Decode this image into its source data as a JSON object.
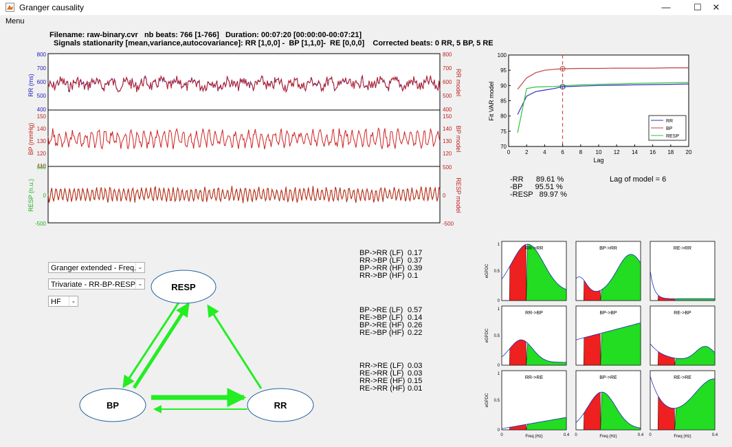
{
  "window": {
    "title": "Granger causality",
    "minimize": "—",
    "maximize": "☐",
    "close": "✕"
  },
  "menu": {
    "label": "Menu"
  },
  "header": {
    "line1": "Filename: raw-binary.cvr   nb beats: 766 [1-766]   Duration: 00:07:20 [00:00:00-00:07:21]",
    "line2": "Signals stationarity [mean,variance,autocovariance]: RR [1,0,0] -  BP [1,1,0]-  RE [0,0,0]    Corrected beats: 0 RR, 5 BP, 5 RE"
  },
  "signals": {
    "rr": {
      "ylabel": "RR (ms)",
      "ylabel_right": "RR model",
      "ticks": [
        "800",
        "700",
        "600",
        "500",
        "400"
      ],
      "color": "#2020c0"
    },
    "bp": {
      "ylabel": "BP (mmHg)",
      "ylabel_right": "BP model",
      "ticks": [
        "150",
        "140",
        "130",
        "120",
        "110"
      ],
      "color": "#d02020"
    },
    "resp": {
      "ylabel": "RESP (n.u.)",
      "ylabel_right": "RESP model",
      "ticks": [
        "500",
        "0",
        "-500"
      ],
      "color": "#20b020"
    }
  },
  "fit_chart": {
    "xlabel": "Lag",
    "ylabel": "Fit VAR model",
    "xticks": [
      "0",
      "2",
      "4",
      "6",
      "8",
      "10",
      "12",
      "14",
      "16",
      "18",
      "20"
    ],
    "yticks": [
      "100",
      "95",
      "90",
      "85",
      "80",
      "75",
      "70"
    ],
    "legend": [
      {
        "name": "RR",
        "color": "#3030c0"
      },
      {
        "name": "BP",
        "color": "#c04040"
      },
      {
        "name": "RESP",
        "color": "#30c040"
      }
    ]
  },
  "fit_stats": {
    "rr": "-RR      89.61 %",
    "bp": "-BP      95.51 %",
    "resp": "-RESP   89.97 %",
    "lag": "Lag of model = 6"
  },
  "controls": {
    "method": "Granger extended - Freq.",
    "model": "Trivariate - RR-BP-RESP",
    "band": "HF"
  },
  "graph": {
    "nodes": {
      "resp": "RESP",
      "bp": "BP",
      "rr": "RR"
    },
    "arrow_color": "#22ee22"
  },
  "values": {
    "group1": [
      {
        "label": "BP->RR (LF)",
        "value": "0.17"
      },
      {
        "label": "RR->BP (LF)",
        "value": "0.37"
      },
      {
        "label": "BP->RR (HF)",
        "value": "0.39"
      },
      {
        "label": "RR->BP (HF)",
        "value": "0.1"
      }
    ],
    "group2": [
      {
        "label": "BP->RE (LF)",
        "value": "0.57"
      },
      {
        "label": "RE->BP (LF)",
        "value": "0.14"
      },
      {
        "label": "BP->RE (HF)",
        "value": "0.26"
      },
      {
        "label": "RE->BP (HF)",
        "value": "0.22"
      }
    ],
    "group3": [
      {
        "label": "RR->RE (LF)",
        "value": "0.03"
      },
      {
        "label": "RE->RR (LF)",
        "value": "0.03"
      },
      {
        "label": "RR->RE (HF)",
        "value": "0.15"
      },
      {
        "label": "RE->RR (HF)",
        "value": "0.01"
      }
    ]
  },
  "gpdc": {
    "ylabel": "eGPDC",
    "xlabel": "Freq (Hz)",
    "xticks": [
      "0",
      "0.4"
    ],
    "yticks": [
      "1",
      "0.5",
      "0"
    ],
    "titles": [
      "RR->RR",
      "BP->RR",
      "RE->RR",
      "RR->BP",
      "BP->BP",
      "RE->BP",
      "RR->RE",
      "BP->RE",
      "RE->RE"
    ]
  },
  "chart_data": {
    "type": "line",
    "title": "",
    "xlabel": "Lag",
    "ylabel": "Fit VAR model",
    "xlim": [
      0,
      20
    ],
    "ylim": [
      70,
      100
    ],
    "x": [
      1,
      2,
      3,
      4,
      5,
      6,
      8,
      10,
      12,
      14,
      16,
      18,
      20
    ],
    "series": [
      {
        "name": "RR",
        "values": [
          80.5,
          86.5,
          88.0,
          88.5,
          89.0,
          89.6,
          89.8,
          90.0,
          90.1,
          90.2,
          90.3,
          90.4,
          90.5
        ]
      },
      {
        "name": "BP",
        "values": [
          88.8,
          92.5,
          94.2,
          95.0,
          95.3,
          95.5,
          95.6,
          95.6,
          95.7,
          95.7,
          95.7,
          95.8,
          95.8
        ]
      },
      {
        "name": "RESP",
        "values": [
          74.5,
          89.0,
          89.5,
          89.6,
          89.7,
          89.9,
          90.2,
          90.4,
          90.5,
          90.7,
          90.8,
          90.9,
          91.0
        ]
      }
    ],
    "selected_lag": 6,
    "legend": "bottom-right"
  }
}
